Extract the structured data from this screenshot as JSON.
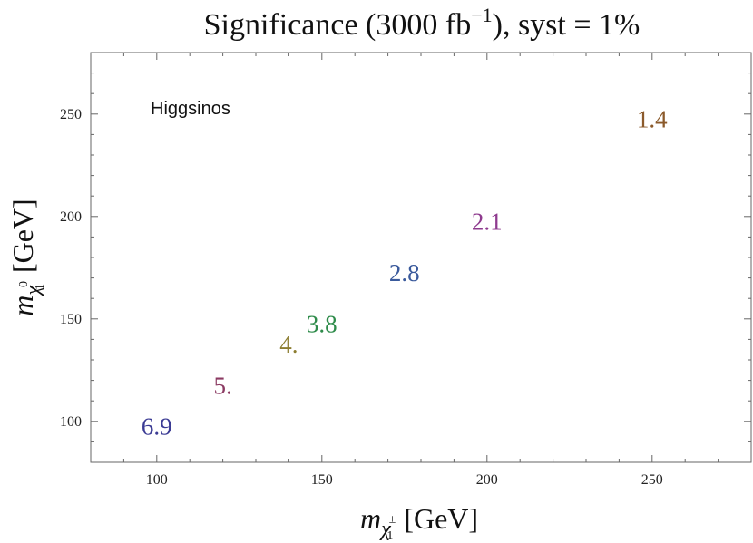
{
  "chart_data": {
    "type": "scatter",
    "title": {
      "main": "Significance (3000 fb",
      "sup": "−1",
      "rest": "), syst = 1%"
    },
    "xlabel": {
      "var": "m",
      "sub": "χ",
      "subsup": "±",
      "subsub": "1",
      "unit": "[GeV]"
    },
    "ylabel": {
      "var": "m",
      "sub": "χ",
      "subsup": "0",
      "subsub": "1",
      "unit": "[GeV]"
    },
    "xlim": [
      80,
      280
    ],
    "ylim": [
      80,
      280
    ],
    "x_ticks": [
      100,
      150,
      200,
      250
    ],
    "y_ticks": [
      100,
      150,
      200,
      250
    ],
    "x_tick_labels": [
      "100",
      "150",
      "200",
      "250"
    ],
    "y_tick_labels": [
      "100",
      "150",
      "200",
      "250"
    ],
    "grid": false,
    "annotation": "Higgsinos",
    "points": [
      {
        "x": 100,
        "y": 97.5,
        "label": "6.9",
        "color": "#3b3b94"
      },
      {
        "x": 120,
        "y": 117.5,
        "label": "5.",
        "color": "#8b3a62"
      },
      {
        "x": 140,
        "y": 137.5,
        "label": "4.",
        "color": "#8c7d30"
      },
      {
        "x": 150,
        "y": 147.5,
        "label": "3.8",
        "color": "#2e8b4a"
      },
      {
        "x": 175,
        "y": 172.5,
        "label": "2.8",
        "color": "#3a5a9c"
      },
      {
        "x": 200,
        "y": 197.5,
        "label": "2.1",
        "color": "#8e3a8e"
      },
      {
        "x": 250,
        "y": 247.5,
        "label": "1.4",
        "color": "#8b5a2b"
      }
    ]
  }
}
